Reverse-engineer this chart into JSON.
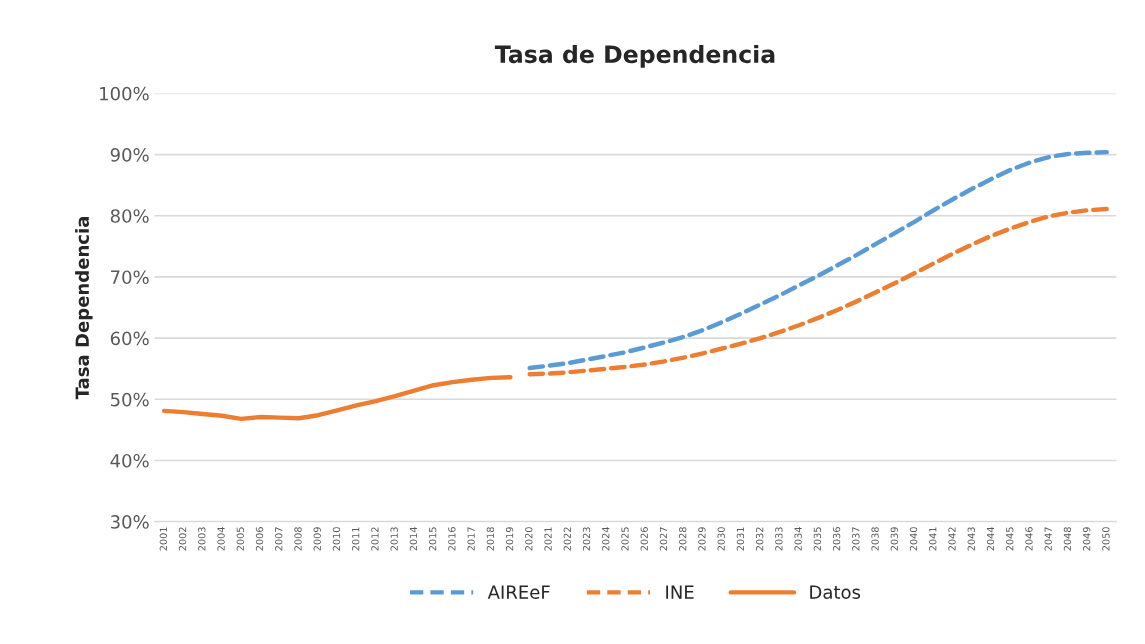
{
  "chart_data": {
    "type": "line",
    "title": "Tasa de Dependencia",
    "ylabel": "Tasa Dependencia",
    "categories": [
      "2001",
      "2002",
      "2003",
      "2004",
      "2005",
      "2006",
      "2007",
      "2008",
      "2009",
      "2010",
      "2011",
      "2012",
      "2013",
      "2014",
      "2015",
      "2016",
      "2017",
      "2018",
      "2019",
      "2020",
      "2021",
      "2022",
      "2023",
      "2024",
      "2025",
      "2026",
      "2027",
      "2028",
      "2029",
      "2030",
      "2031",
      "2032",
      "2033",
      "2034",
      "2035",
      "2036",
      "2037",
      "2038",
      "2039",
      "2040",
      "2041",
      "2042",
      "2043",
      "2044",
      "2045",
      "2046",
      "2047",
      "2048",
      "2049",
      "2050"
    ],
    "series": [
      {
        "name": "AIREeF",
        "color": "#5b9bd5",
        "line_style": "dashed",
        "values": [
          null,
          null,
          null,
          null,
          null,
          null,
          null,
          null,
          null,
          null,
          null,
          null,
          null,
          null,
          null,
          null,
          null,
          null,
          null,
          55.1,
          55.5,
          55.9,
          56.5,
          57.1,
          57.7,
          58.5,
          59.3,
          60.2,
          61.3,
          62.6,
          64.0,
          65.5,
          67.0,
          68.6,
          70.2,
          71.9,
          73.6,
          75.4,
          77.2,
          79.0,
          80.9,
          82.7,
          84.4,
          86.0,
          87.5,
          88.7,
          89.6,
          90.1,
          90.3,
          90.4
        ]
      },
      {
        "name": "INE",
        "color": "#ed7d31",
        "line_style": "dashed",
        "values": [
          null,
          null,
          null,
          null,
          null,
          null,
          null,
          null,
          null,
          null,
          null,
          null,
          null,
          null,
          null,
          null,
          null,
          null,
          null,
          54.1,
          54.2,
          54.4,
          54.7,
          55.0,
          55.3,
          55.7,
          56.2,
          56.8,
          57.5,
          58.3,
          59.1,
          60.0,
          61.0,
          62.1,
          63.3,
          64.6,
          66.0,
          67.5,
          69.0,
          70.6,
          72.2,
          73.8,
          75.3,
          76.7,
          77.9,
          79.0,
          79.9,
          80.5,
          80.9,
          81.1
        ]
      },
      {
        "name": "Datos",
        "color": "#ed7d31",
        "line_style": "solid",
        "values": [
          48.1,
          47.9,
          47.6,
          47.3,
          46.8,
          47.1,
          47.0,
          46.9,
          47.4,
          48.2,
          49.0,
          49.7,
          50.5,
          51.4,
          52.3,
          52.8,
          53.2,
          53.5,
          53.6,
          null,
          null,
          null,
          null,
          null,
          null,
          null,
          null,
          null,
          null,
          null,
          null,
          null,
          null,
          null,
          null,
          null,
          null,
          null,
          null,
          null,
          null,
          null,
          null,
          null,
          null,
          null,
          null,
          null,
          null,
          null
        ]
      }
    ],
    "ylim": [
      30,
      100
    ],
    "yticks": [
      {
        "value": 30,
        "label": "30%"
      },
      {
        "value": 40,
        "label": "40%"
      },
      {
        "value": 50,
        "label": "50%"
      },
      {
        "value": 60,
        "label": "60%"
      },
      {
        "value": 70,
        "label": "70%"
      },
      {
        "value": 80,
        "label": "80%"
      },
      {
        "value": 90,
        "label": "90%"
      },
      {
        "value": 100,
        "label": "100%"
      }
    ],
    "grid": "y",
    "legend": "bottom",
    "marker": "none"
  }
}
